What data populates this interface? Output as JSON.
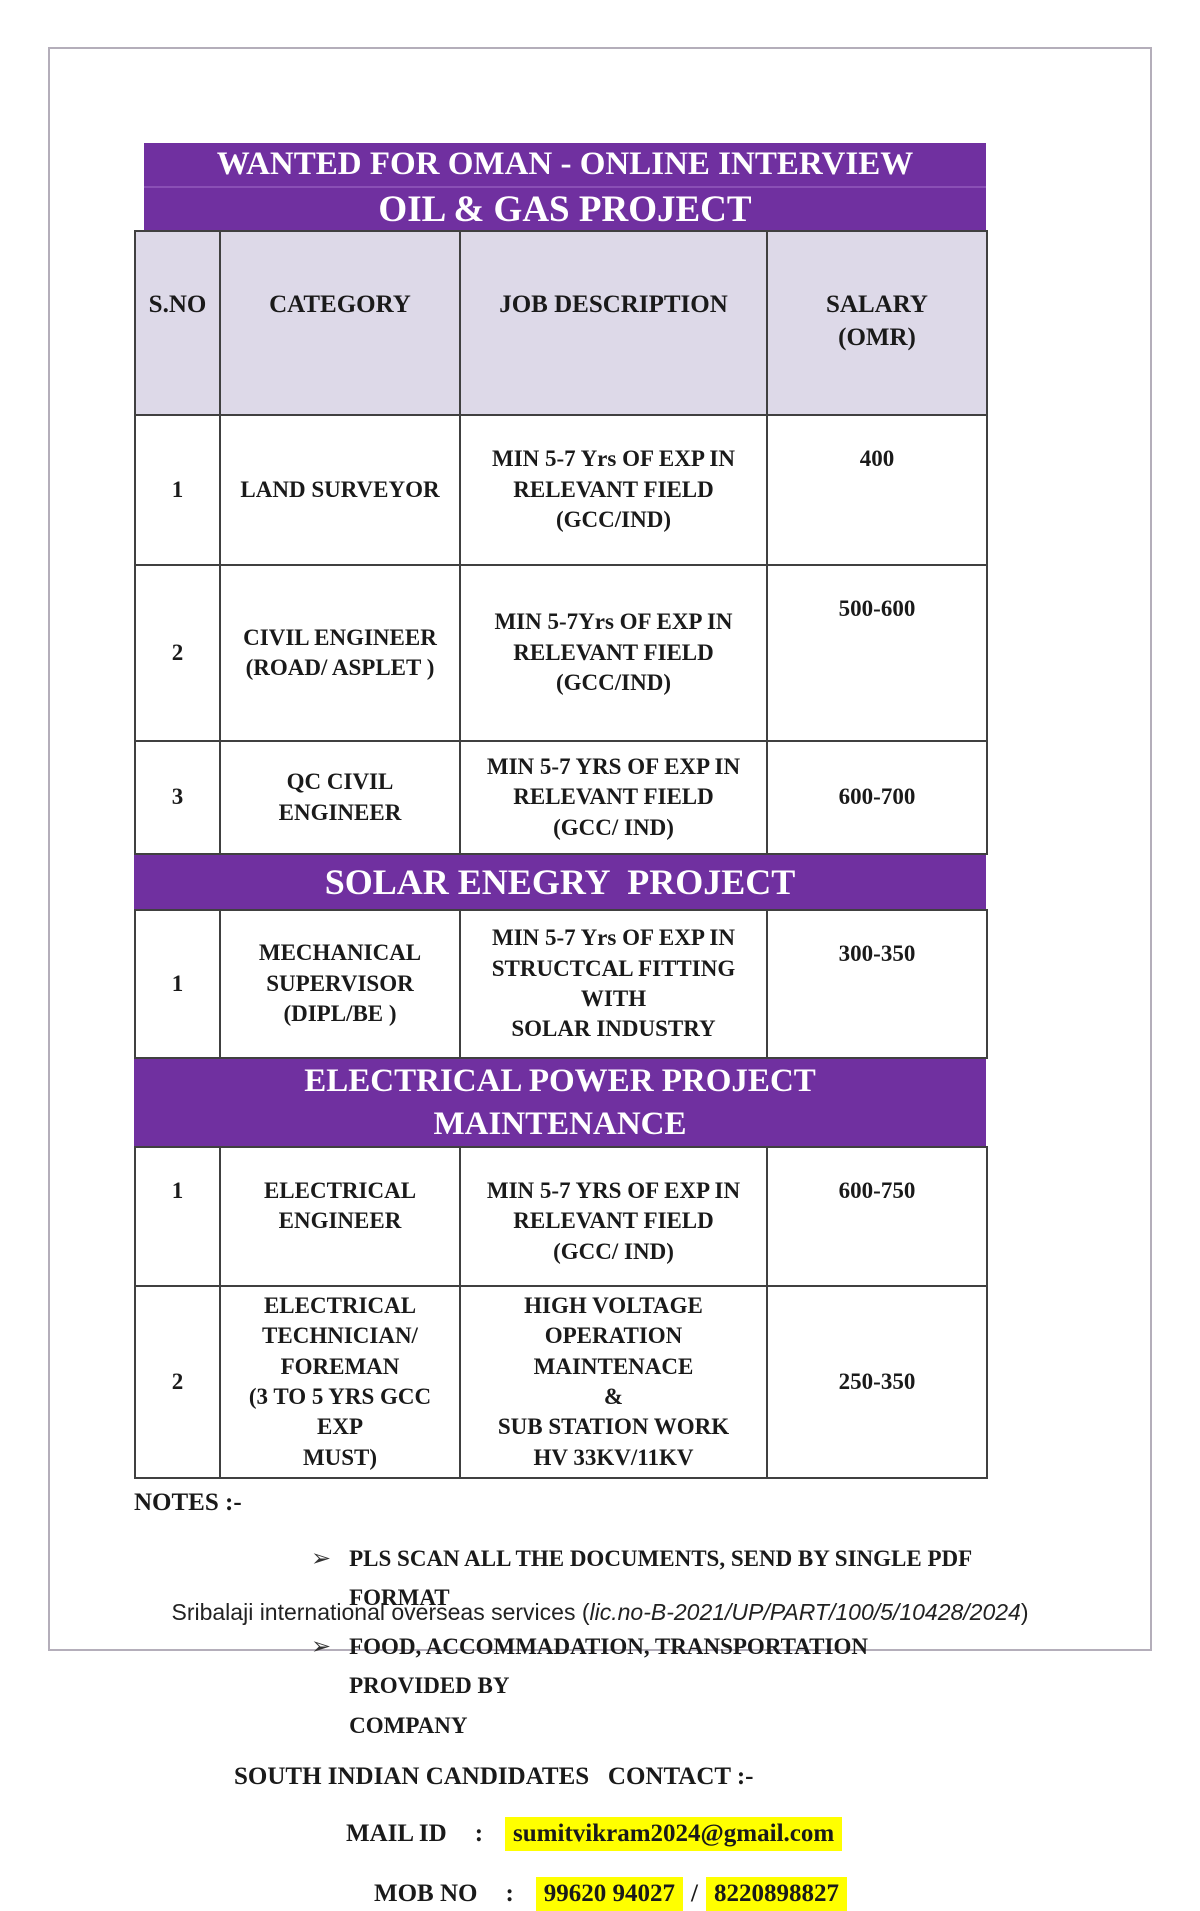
{
  "colors": {
    "banner_purple": "#7030A0",
    "table_header_bg": "#DDD9E8",
    "highlight_yellow": "#FFFF00"
  },
  "banners": {
    "oil_line1": "WANTED FOR OMAN - ONLINE INTERVIEW",
    "oil_line2": "OIL & GAS PROJECT",
    "solar": "SOLAR ENEGRY  PROJECT",
    "elec_line1": "ELECTRICAL POWER PROJECT",
    "elec_line2": "MAINTENANCE"
  },
  "table": {
    "headers": {
      "sno": "S.NO",
      "category": "CATEGORY",
      "job": "JOB DESCRIPTION",
      "salary": "SALARY\n(OMR)"
    },
    "oil_rows": [
      {
        "sno": "1",
        "category": "LAND SURVEYOR",
        "job": "MIN 5-7 Yrs OF EXP IN\nRELEVANT FIELD\n(GCC/IND)",
        "salary": "400"
      },
      {
        "sno": "2",
        "category": "CIVIL ENGINEER\n(ROAD/ ASPLET )",
        "job": "MIN 5-7Yrs OF EXP IN\nRELEVANT FIELD\n(GCC/IND)",
        "salary": "500-600"
      },
      {
        "sno": "3",
        "category": "QC CIVIL ENGINEER",
        "job": "MIN 5-7 YRS OF EXP IN\nRELEVANT FIELD\n(GCC/ IND)",
        "salary": "600-700"
      }
    ],
    "solar_rows": [
      {
        "sno": "1",
        "category": "MECHANICAL\nSUPERVISOR\n(DIPL/BE )",
        "job": "MIN 5-7 Yrs OF EXP IN\nSTRUCTCAL FITTING WITH\nSOLAR INDUSTRY",
        "salary": "300-350"
      }
    ],
    "electrical_rows": [
      {
        "sno": "1",
        "category": "ELECTRICAL\nENGINEER",
        "job": "MIN 5-7 YRS OF EXP IN\nRELEVANT FIELD\n(GCC/ IND)",
        "salary": "600-750"
      },
      {
        "sno": "2",
        "category": "ELECTRICAL\nTECHNICIAN/\nFOREMAN\n(3 TO 5 YRS GCC EXP\nMUST)",
        "job": "HIGH VOLTAGE OPERATION\nMAINTENACE\n&\nSUB STATION WORK\nHV 33KV/11KV",
        "salary": "250-350"
      }
    ]
  },
  "notes": {
    "label": "NOTES :-",
    "bullet_icon": "➢",
    "items": [
      "PLS SCAN ALL THE DOCUMENTS, SEND BY SINGLE PDF FORMAT",
      "FOOD, ACCOMMADATION, TRANSPORTATION   PROVIDED BY\nCOMPANY"
    ]
  },
  "contact": {
    "heading": "SOUTH INDIAN CANDIDATES   CONTACT :-",
    "mail_label": "MAIL ID",
    "mail_colon": ":",
    "email": "sumitvikram2024@gmail.com",
    "mob_label": "MOB NO",
    "mob_colon": ":",
    "phone1": "99620 94027",
    "phone_separator": "/",
    "phone2": "8220898827"
  },
  "footer": {
    "prefix": "Sribalaji international overseas services (",
    "license": "lic.no-B-2021/UP/PART/100/5/10428/2024",
    "suffix": ")"
  }
}
